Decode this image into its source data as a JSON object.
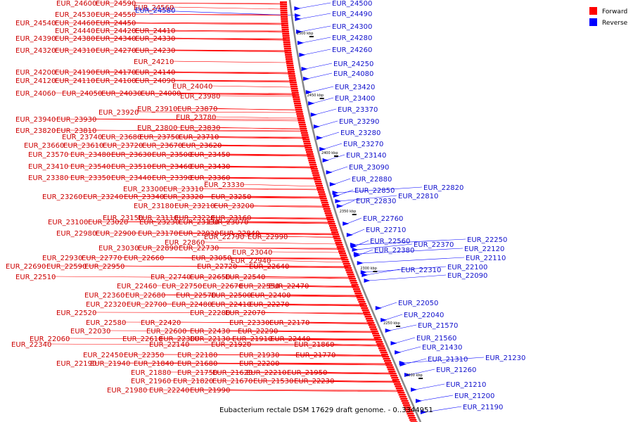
{
  "title": "Eubacterium rectale DSM 17629 draft genome. - 0..3344951",
  "legend": [
    {
      "label": "Forward",
      "color": "#ff0000"
    },
    {
      "label": "Reverse",
      "color": "#0000ff"
    }
  ],
  "colors": {
    "forward": "#ff0000",
    "reverse": "#0000ff",
    "forward_text": "#cc0000",
    "reverse_text": "#1010cc",
    "backbone": "#888888"
  },
  "kbp_marks": [
    "2500 kbp",
    "2450 kbp",
    "2400 kbp",
    "2350 kbp",
    "2300 kbp",
    "2250 kbp",
    "2200 kbp"
  ],
  "forward_labels": [
    "EUR_24600",
    "EUR_24590",
    "EUR_24560",
    "EUR_24530",
    "EUR_24550",
    "EUR_24540",
    "EUR_24460",
    "EUR_24450",
    "EUR_24440",
    "EUR_24420",
    "EUR_24410",
    "EUR_24390",
    "EUR_24380",
    "EUR_24340",
    "EUR_24330",
    "EUR_24320",
    "EUR_24310",
    "EUR_24270",
    "EUR_24230",
    "EUR_24210",
    "EUR_24200",
    "EUR_24190",
    "EUR_24170",
    "EUR_24140",
    "EUR_24120",
    "EUR_24110",
    "EUR_24100",
    "EUR_24090",
    "EUR_24040",
    "EUR_24060",
    "EUR_24050",
    "EUR_24030",
    "EUR_24000",
    "EUR_23980",
    "EUR_23910",
    "EUR_23870",
    "EUR_23920",
    "EUR_23780",
    "EUR_23940",
    "EUR_23930",
    "EUR_23800",
    "EUR_23830",
    "EUR_23820",
    "EUR_23810",
    "EUR_23740",
    "EUR_23680",
    "EUR_23750",
    "EUR_23710",
    "EUR_23660",
    "EUR_23610",
    "EUR_23720",
    "EUR_23670",
    "EUR_23620",
    "EUR_23570",
    "EUR_23480",
    "EUR_23630",
    "EUR_23500",
    "EUR_23450",
    "EUR_23410",
    "EUR_23540",
    "EUR_23510",
    "EUR_23460",
    "EUR_23430",
    "EUR_23380",
    "EUR_23350",
    "EUR_23440",
    "EUR_23390",
    "EUR_23360",
    "EUR_23330",
    "EUR_23300",
    "EUR_23310",
    "EUR_23260",
    "EUR_23240",
    "EUR_23340",
    "EUR_23320",
    "EUR_23250",
    "EUR_23180",
    "EUR_23210",
    "EUR_23200",
    "EUR_23150",
    "EUR_23110",
    "EUR_23220",
    "EUR_23160",
    "EUR_23100",
    "EUR_23020",
    "EUR_23230",
    "EUR_23130",
    "EUR_23070",
    "EUR_22980",
    "EUR_22900",
    "EUR_23170",
    "EUR_22920",
    "EUR_22840",
    "EUR_22790",
    "EUR_22990",
    "EUR_22860",
    "EUR_23030",
    "EUR_22890",
    "EUR_22730",
    "EUR_23040",
    "EUR_22930",
    "EUR_22770",
    "EUR_22660",
    "EUR_23050",
    "EUR_22940",
    "EUR_22690",
    "EUR_22590",
    "EUR_22950",
    "EUR_22720",
    "EUR_22640",
    "EUR_22510",
    "EUR_22740",
    "EUR_22650",
    "EUR_22540",
    "EUR_22460",
    "EUR_22750",
    "EUR_22670",
    "EUR_22550",
    "EUR_22470",
    "EUR_22360",
    "EUR_22680",
    "EUR_22570",
    "EUR_22500",
    "EUR_22400",
    "EUR_22320",
    "EUR_22700",
    "EUR_22480",
    "EUR_22410",
    "EUR_22270",
    "EUR_22520",
    "EUR_22280",
    "EUR_22070",
    "EUR_22580",
    "EUR_22420",
    "EUR_22330",
    "EUR_22170",
    "EUR_22030",
    "EUR_22600",
    "EUR_22430",
    "EUR_22290",
    "EUR_22060",
    "EUR_22610",
    "EUR_22300",
    "EUR_22130",
    "EUR_21910",
    "EUR_22440",
    "EUR_22340",
    "EUR_22140",
    "EUR_21920",
    "EUR_21860",
    "EUR_22450",
    "EUR_22350",
    "EUR_22180",
    "EUR_21930",
    "EUR_21770",
    "EUR_22190",
    "EUR_21940",
    "EUR_21840",
    "EUR_21680",
    "EUR_22200",
    "EUR_21880",
    "EUR_21750",
    "EUR_21620",
    "EUR_22210",
    "EUR_21950",
    "EUR_21960",
    "EUR_21820",
    "EUR_21670",
    "EUR_21530",
    "EUR_22230",
    "EUR_21980",
    "EUR_22240",
    "EUR_21990"
  ],
  "reverse_labels": [
    "EUR_24580",
    "EUR_24500",
    "EUR_24490",
    "EUR_24300",
    "EUR_24280",
    "EUR_24260",
    "EUR_24250",
    "EUR_24080",
    "EUR_23420",
    "EUR_23400",
    "EUR_23370",
    "EUR_23290",
    "EUR_23280",
    "EUR_23270",
    "EUR_23140",
    "EUR_23090",
    "EUR_22880",
    "EUR_22850",
    "EUR_22820",
    "EUR_22810",
    "EUR_22830",
    "EUR_22760",
    "EUR_22710",
    "EUR_22560",
    "EUR_22380",
    "EUR_22370",
    "EUR_22250",
    "EUR_22120",
    "EUR_22110",
    "EUR_22100",
    "EUR_22310",
    "EUR_22090",
    "EUR_22050",
    "EUR_22040",
    "EUR_21570",
    "EUR_21560",
    "EUR_21430",
    "EUR_21230",
    "EUR_21310",
    "EUR_21260",
    "EUR_21210",
    "EUR_21200",
    "EUR_21190"
  ]
}
